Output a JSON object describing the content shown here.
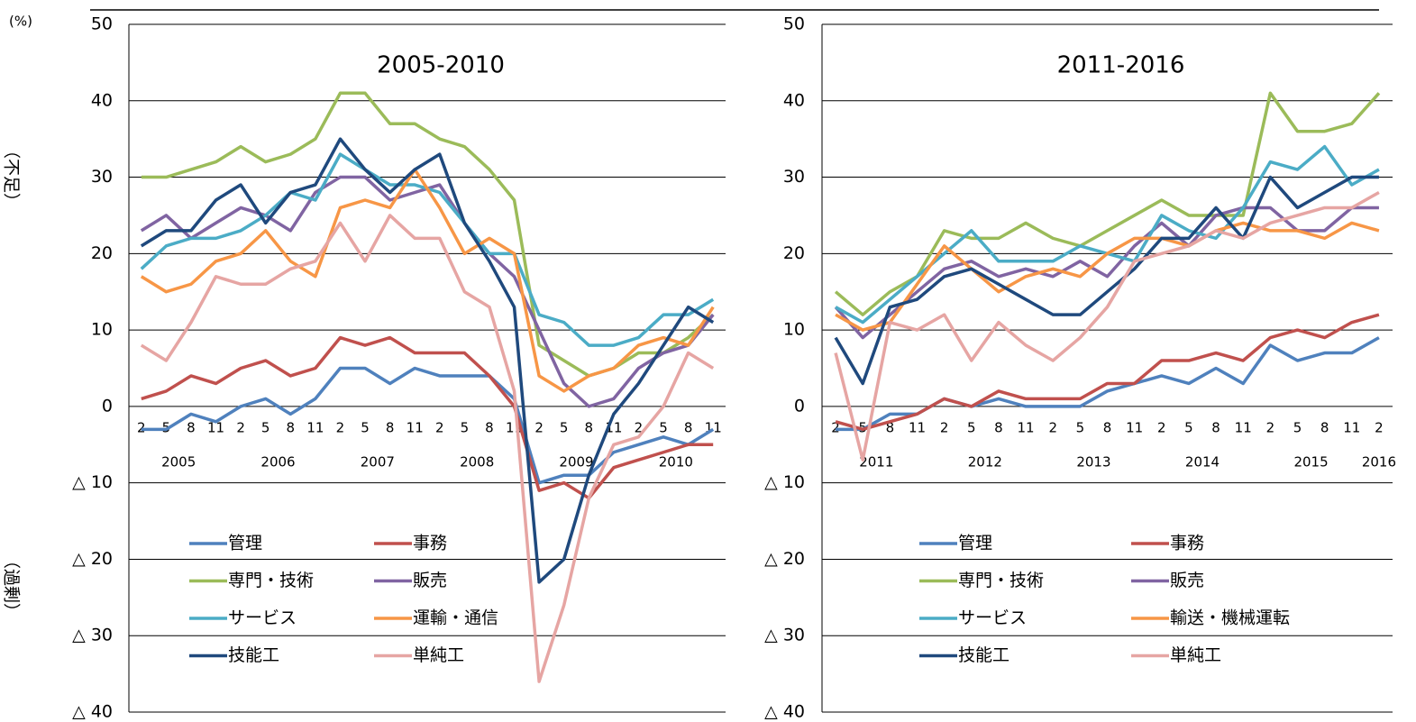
{
  "unit_label": "(%)",
  "shortage_label": "（不足）",
  "surplus_label": "（過剰）",
  "chart_data": [
    {
      "type": "line",
      "title": "2005-2010",
      "categories": [
        "2",
        "5",
        "8",
        "11",
        "2",
        "5",
        "8",
        "11",
        "2",
        "5",
        "8",
        "11",
        "2",
        "5",
        "8",
        "11",
        "2",
        "5",
        "8",
        "11",
        "2",
        "5",
        "8",
        "11"
      ],
      "year_labels": [
        "2005",
        "2006",
        "2007",
        "2008",
        "2009",
        "2010"
      ],
      "ylim": [
        -40,
        50
      ],
      "yticks": [
        {
          "value": -40,
          "label": "△ 40"
        },
        {
          "value": -30,
          "label": "△ 30"
        },
        {
          "value": -20,
          "label": "△ 20"
        },
        {
          "value": -10,
          "label": "△ 10"
        },
        0,
        10,
        20,
        30,
        40,
        50
      ],
      "grid": true,
      "series": [
        {
          "name": "管理",
          "color": "#4f81bd",
          "values": [
            -3,
            -3,
            -1,
            -2,
            0,
            1,
            -1,
            1,
            5,
            5,
            3,
            5,
            4,
            4,
            4,
            1,
            -10,
            -9,
            -9,
            -6,
            -5,
            -4,
            -5,
            -3
          ]
        },
        {
          "name": "事務",
          "color": "#c0504d",
          "values": [
            1,
            2,
            4,
            3,
            5,
            6,
            4,
            5,
            9,
            8,
            9,
            7,
            7,
            7,
            4,
            0,
            -11,
            -10,
            -12,
            -8,
            -7,
            -6,
            -5,
            -5
          ]
        },
        {
          "name": "専門・技術",
          "color": "#9bbb59",
          "values": [
            30,
            30,
            31,
            32,
            34,
            32,
            33,
            35,
            41,
            41,
            37,
            37,
            35,
            34,
            31,
            27,
            8,
            6,
            4,
            5,
            7,
            7,
            9,
            12
          ]
        },
        {
          "name": "販売",
          "color": "#8064a2",
          "values": [
            23,
            25,
            22,
            24,
            26,
            25,
            23,
            28,
            30,
            30,
            27,
            28,
            29,
            24,
            20,
            17,
            10,
            3,
            0,
            1,
            5,
            7,
            8,
            12
          ]
        },
        {
          "name": "サービス",
          "color": "#4bacc6",
          "values": [
            18,
            21,
            22,
            22,
            23,
            25,
            28,
            27,
            33,
            31,
            29,
            29,
            28,
            24,
            20,
            20,
            12,
            11,
            8,
            8,
            9,
            12,
            12,
            14
          ]
        },
        {
          "name": "運輸・通信",
          "color": "#f79646",
          "values": [
            17,
            15,
            16,
            19,
            20,
            23,
            19,
            17,
            26,
            27,
            26,
            31,
            26,
            20,
            22,
            20,
            4,
            2,
            4,
            5,
            8,
            9,
            8,
            13
          ]
        },
        {
          "name": "技能工",
          "color": "#1f497d",
          "values": [
            21,
            23,
            23,
            27,
            29,
            24,
            28,
            29,
            35,
            31,
            28,
            31,
            33,
            24,
            19,
            13,
            -23,
            -20,
            -9,
            -1,
            3,
            8,
            13,
            11
          ]
        },
        {
          "name": "単純工",
          "color": "#e6a5a3",
          "values": [
            8,
            6,
            11,
            17,
            16,
            16,
            18,
            19,
            24,
            19,
            25,
            22,
            22,
            15,
            13,
            2,
            -36,
            -26,
            -12,
            -5,
            -4,
            0,
            7,
            5
          ]
        }
      ]
    },
    {
      "type": "line",
      "title": "2011-2016",
      "categories": [
        "2",
        "5",
        "8",
        "11",
        "2",
        "5",
        "8",
        "11",
        "2",
        "5",
        "8",
        "11",
        "2",
        "5",
        "8",
        "11",
        "2",
        "5",
        "8",
        "11",
        "2"
      ],
      "year_labels": [
        "2011",
        "2012",
        "2013",
        "2014",
        "2015",
        "2016"
      ],
      "ylim": [
        -40,
        50
      ],
      "yticks": [
        {
          "value": -40,
          "label": "△ 40"
        },
        {
          "value": -30,
          "label": "△ 30"
        },
        {
          "value": -20,
          "label": "△ 20"
        },
        {
          "value": -10,
          "label": "△ 10"
        },
        0,
        10,
        20,
        30,
        40,
        50
      ],
      "grid": true,
      "series": [
        {
          "name": "管理",
          "color": "#4f81bd",
          "values": [
            -3,
            -3,
            -1,
            -1,
            1,
            0,
            1,
            0,
            0,
            0,
            2,
            3,
            4,
            3,
            5,
            3,
            8,
            6,
            7,
            7,
            9
          ]
        },
        {
          "name": "事務",
          "color": "#c0504d",
          "values": [
            -2,
            -3,
            -2,
            -1,
            1,
            0,
            2,
            1,
            1,
            1,
            3,
            3,
            6,
            6,
            7,
            6,
            9,
            10,
            9,
            11,
            12
          ]
        },
        {
          "name": "専門・技術",
          "color": "#9bbb59",
          "values": [
            15,
            12,
            15,
            17,
            23,
            22,
            22,
            24,
            22,
            21,
            23,
            25,
            27,
            25,
            25,
            25,
            41,
            36,
            36,
            37,
            41
          ]
        },
        {
          "name": "販売",
          "color": "#8064a2",
          "values": [
            13,
            9,
            12,
            15,
            18,
            19,
            17,
            18,
            17,
            19,
            17,
            21,
            24,
            21,
            25,
            26,
            26,
            23,
            23,
            26,
            26
          ]
        },
        {
          "name": "サービス",
          "color": "#4bacc6",
          "values": [
            13,
            11,
            14,
            17,
            20,
            23,
            19,
            19,
            19,
            21,
            20,
            19,
            25,
            23,
            22,
            26,
            32,
            31,
            34,
            29,
            31
          ]
        },
        {
          "name": "輸送・機械運転",
          "color": "#f79646",
          "values": [
            12,
            10,
            11,
            16,
            21,
            18,
            15,
            17,
            18,
            17,
            20,
            22,
            22,
            21,
            23,
            24,
            23,
            23,
            22,
            24,
            23
          ]
        },
        {
          "name": "技能工",
          "color": "#1f497d",
          "values": [
            9,
            3,
            13,
            14,
            17,
            18,
            16,
            14,
            12,
            12,
            15,
            18,
            22,
            22,
            26,
            22,
            30,
            26,
            28,
            30,
            30
          ]
        },
        {
          "name": "単純工",
          "color": "#e6a5a3",
          "values": [
            7,
            -7,
            11,
            10,
            12,
            6,
            11,
            8,
            6,
            9,
            13,
            19,
            20,
            21,
            23,
            22,
            24,
            25,
            26,
            26,
            28
          ]
        }
      ]
    }
  ]
}
